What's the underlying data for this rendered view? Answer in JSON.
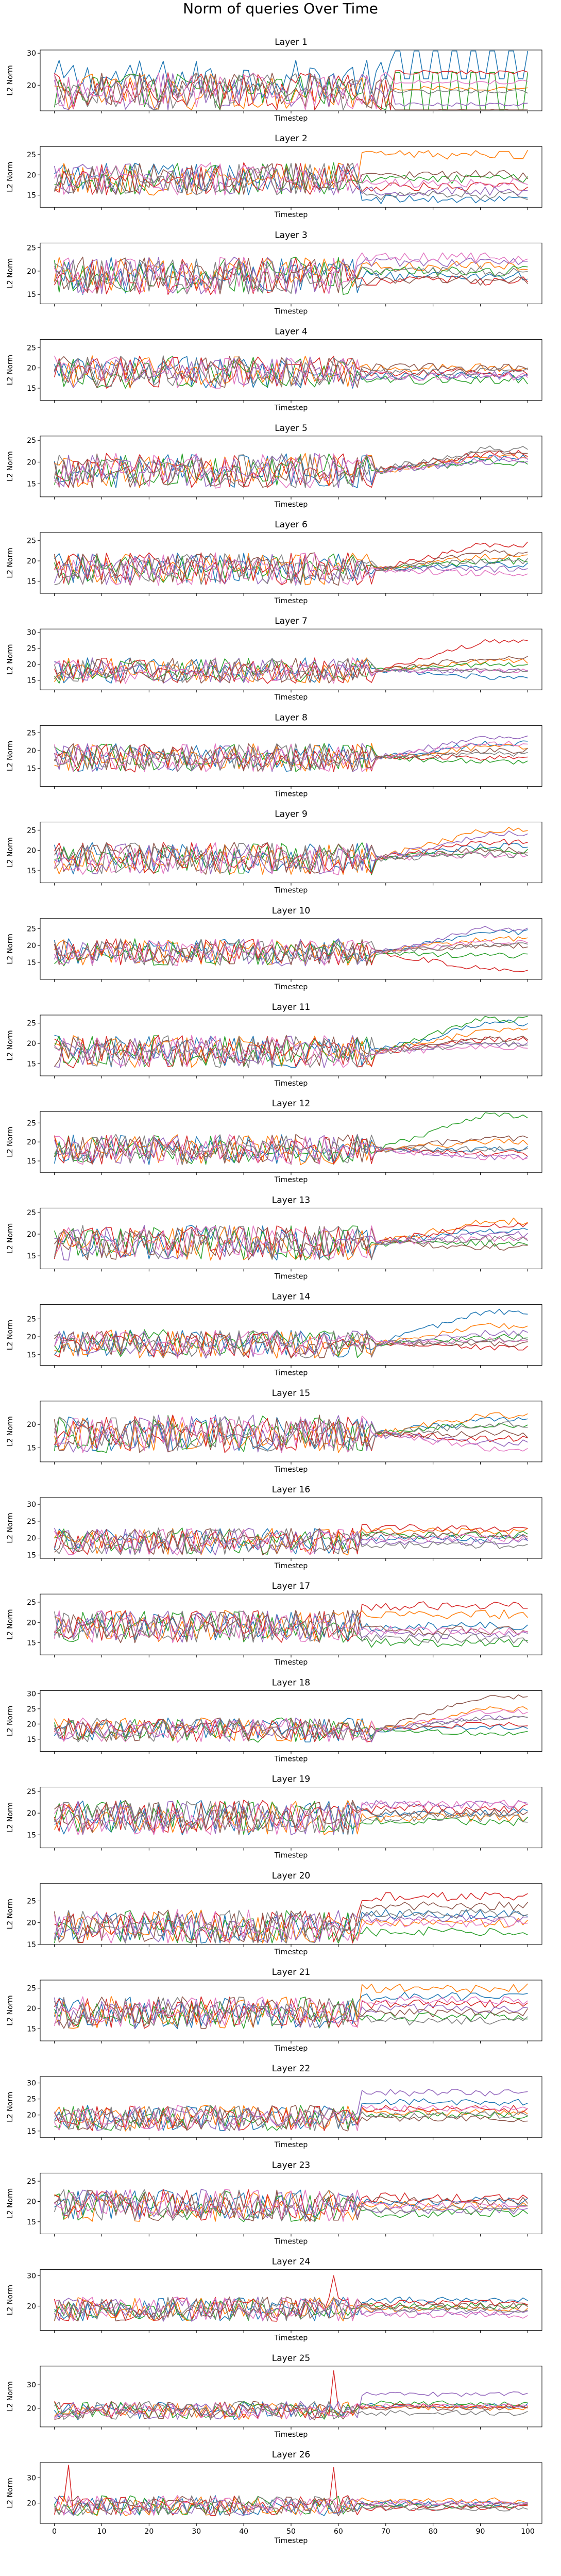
{
  "figure": {
    "suptitle": "Norm of queries Over Time",
    "xlabel": "Timestep",
    "ylabel": "L2 Norm",
    "x_ticks": [
      0,
      10,
      20,
      30,
      40,
      50,
      60,
      70,
      80,
      90,
      100
    ],
    "xlim": [
      -3,
      103
    ],
    "colors": [
      "#1f77b4",
      "#ff7f0e",
      "#2ca02c",
      "#d62728",
      "#9467bd",
      "#8c564b",
      "#e377c2",
      "#7f7f7f"
    ]
  },
  "chart_data": [
    {
      "type": "line",
      "title": "Layer 1",
      "xlabel": "Timestep",
      "ylabel": "L2 Norm",
      "ylim": [
        12,
        31
      ],
      "yticks": [
        20,
        30
      ],
      "profile": "early",
      "base": [
        26,
        19,
        16,
        24,
        14,
        12,
        21,
        18
      ],
      "series": []
    },
    {
      "type": "line",
      "title": "Layer 2",
      "xlabel": "Timestep",
      "ylabel": "L2 Norm",
      "ylim": [
        12,
        27
      ],
      "yticks": [
        15,
        20,
        25
      ],
      "profile": "flat",
      "base": [
        14,
        25,
        19,
        17,
        16,
        20,
        18,
        15
      ],
      "series": []
    },
    {
      "type": "line",
      "title": "Layer 3",
      "xlabel": "Timestep",
      "ylabel": "L2 Norm",
      "ylim": [
        13,
        26
      ],
      "yticks": [
        15,
        20,
        25
      ],
      "profile": "flat",
      "base": [
        19,
        21,
        20,
        18,
        22,
        18,
        23,
        20
      ],
      "series": []
    },
    {
      "type": "line",
      "title": "Layer 4",
      "xlabel": "Timestep",
      "ylabel": "L2 Norm",
      "ylim": [
        12,
        27
      ],
      "yticks": [
        15,
        20,
        25
      ],
      "profile": "flat",
      "base": [
        18,
        20,
        17,
        19,
        18,
        20,
        18,
        19
      ],
      "series": []
    },
    {
      "type": "line",
      "title": "Layer 5",
      "xlabel": "Timestep",
      "ylabel": "L2 Norm",
      "ylim": [
        12,
        26
      ],
      "yticks": [
        15,
        20,
        25
      ],
      "profile": "rise",
      "base": [
        21,
        21,
        20,
        22,
        20,
        22,
        21,
        23
      ],
      "series": []
    },
    {
      "type": "line",
      "title": "Layer 6",
      "xlabel": "Timestep",
      "ylabel": "L2 Norm",
      "ylim": [
        12,
        27
      ],
      "yticks": [
        15,
        20,
        25
      ],
      "profile": "rise",
      "base": [
        19,
        21,
        20,
        24,
        18,
        22,
        17,
        20
      ],
      "series": []
    },
    {
      "type": "line",
      "title": "Layer 7",
      "xlabel": "Timestep",
      "ylabel": "L2 Norm",
      "ylim": [
        12,
        31
      ],
      "yticks": [
        15,
        20,
        25,
        30
      ],
      "profile": "rise",
      "base": [
        16,
        21,
        20,
        27,
        18,
        22,
        18,
        18
      ],
      "series": []
    },
    {
      "type": "line",
      "title": "Layer 8",
      "xlabel": "Timestep",
      "ylabel": "L2 Norm",
      "ylim": [
        10,
        27
      ],
      "yticks": [
        15,
        20,
        25
      ],
      "profile": "rise",
      "base": [
        22,
        21,
        17,
        18,
        24,
        20,
        22,
        19
      ],
      "series": []
    },
    {
      "type": "line",
      "title": "Layer 9",
      "xlabel": "Timestep",
      "ylabel": "L2 Norm",
      "ylim": [
        12,
        27
      ],
      "yticks": [
        15,
        20,
        25
      ],
      "profile": "rise",
      "base": [
        21,
        25,
        20,
        22,
        24,
        20,
        19,
        19
      ],
      "series": []
    },
    {
      "type": "line",
      "title": "Layer 10",
      "xlabel": "Timestep",
      "ylabel": "L2 Norm",
      "ylim": [
        10,
        28
      ],
      "yticks": [
        15,
        20,
        25
      ],
      "profile": "rise",
      "base": [
        24,
        22,
        17,
        13,
        25,
        20,
        21,
        20
      ],
      "series": []
    },
    {
      "type": "line",
      "title": "Layer 11",
      "xlabel": "Timestep",
      "ylabel": "L2 Norm",
      "ylim": [
        12,
        27
      ],
      "yticks": [
        15,
        20,
        25
      ],
      "profile": "rise",
      "base": [
        25,
        23,
        26,
        21,
        20,
        21,
        19,
        20
      ],
      "series": []
    },
    {
      "type": "line",
      "title": "Layer 12",
      "xlabel": "Timestep",
      "ylabel": "L2 Norm",
      "ylim": [
        12,
        28
      ],
      "yticks": [
        15,
        20,
        25
      ],
      "profile": "rise",
      "base": [
        18,
        20,
        27,
        17,
        16,
        21,
        16,
        18
      ],
      "series": []
    },
    {
      "type": "line",
      "title": "Layer 13",
      "xlabel": "Timestep",
      "ylabel": "L2 Norm",
      "ylim": [
        12,
        26
      ],
      "yticks": [
        15,
        20,
        25
      ],
      "profile": "rise",
      "base": [
        21,
        23,
        18,
        22,
        20,
        17,
        19,
        19
      ],
      "series": []
    },
    {
      "type": "line",
      "title": "Layer 14",
      "xlabel": "Timestep",
      "ylabel": "L2 Norm",
      "ylim": [
        12,
        29
      ],
      "yticks": [
        15,
        20,
        25
      ],
      "profile": "rise",
      "base": [
        27,
        23,
        20,
        17,
        21,
        18,
        19,
        19
      ],
      "series": []
    },
    {
      "type": "line",
      "title": "Layer 15",
      "xlabel": "Timestep",
      "ylabel": "L2 Norm",
      "ylim": [
        12,
        25
      ],
      "yticks": [
        15,
        20
      ],
      "profile": "rise",
      "base": [
        21,
        22,
        20,
        17,
        16,
        18,
        15,
        20
      ],
      "series": []
    },
    {
      "type": "line",
      "title": "Layer 16",
      "xlabel": "Timestep",
      "ylabel": "L2 Norm",
      "ylim": [
        14,
        32
      ],
      "yticks": [
        15,
        20,
        25,
        30
      ],
      "profile": "flat",
      "base": [
        20,
        22,
        21,
        23,
        19,
        21,
        20,
        18
      ],
      "series": []
    },
    {
      "type": "line",
      "title": "Layer 17",
      "xlabel": "Timestep",
      "ylabel": "L2 Norm",
      "ylim": [
        12,
        27
      ],
      "yticks": [
        15,
        20,
        25
      ],
      "profile": "flat",
      "base": [
        19,
        22,
        15,
        24,
        17,
        18,
        18,
        16
      ],
      "series": []
    },
    {
      "type": "line",
      "title": "Layer 18",
      "xlabel": "Timestep",
      "ylabel": "L2 Norm",
      "ylim": [
        11,
        31
      ],
      "yticks": [
        15,
        20,
        25,
        30
      ],
      "profile": "rise",
      "base": [
        19,
        25,
        17,
        20,
        22,
        29,
        24,
        22
      ],
      "series": []
    },
    {
      "type": "line",
      "title": "Layer 19",
      "xlabel": "Timestep",
      "ylabel": "L2 Norm",
      "ylim": [
        12,
        26
      ],
      "yticks": [
        15,
        20,
        25
      ],
      "profile": "flat",
      "base": [
        20,
        19,
        18,
        21,
        22,
        20,
        22,
        19
      ],
      "series": []
    },
    {
      "type": "line",
      "title": "Layer 20",
      "xlabel": "Timestep",
      "ylabel": "L2 Norm",
      "ylim": [
        15,
        29
      ],
      "yticks": [
        15,
        20,
        25
      ],
      "profile": "flat",
      "base": [
        22,
        20,
        18,
        26,
        21,
        24,
        20,
        22
      ],
      "series": []
    },
    {
      "type": "line",
      "title": "Layer 21",
      "xlabel": "Timestep",
      "ylabel": "L2 Norm",
      "ylim": [
        12,
        27
      ],
      "yticks": [
        15,
        20,
        25
      ],
      "profile": "flat",
      "base": [
        23,
        25,
        18,
        21,
        20,
        19,
        22,
        17
      ],
      "series": []
    },
    {
      "type": "line",
      "title": "Layer 22",
      "xlabel": "Timestep",
      "ylabel": "L2 Norm",
      "ylim": [
        13,
        32
      ],
      "yticks": [
        15,
        20,
        25,
        30
      ],
      "profile": "flat",
      "base": [
        24,
        21,
        20,
        22,
        27,
        19,
        22,
        20
      ],
      "series": []
    },
    {
      "type": "line",
      "title": "Layer 23",
      "xlabel": "Timestep",
      "ylabel": "L2 Norm",
      "ylim": [
        12,
        27
      ],
      "yticks": [
        15,
        20,
        25
      ],
      "profile": "flat",
      "base": [
        20,
        19,
        17,
        21,
        18,
        20,
        19,
        18
      ],
      "series": []
    },
    {
      "type": "line",
      "title": "Layer 24",
      "xlabel": "Timestep",
      "ylabel": "L2 Norm",
      "ylim": [
        12,
        32
      ],
      "yticks": [
        20,
        30
      ],
      "profile": "flat",
      "base": [
        22,
        19,
        20,
        21,
        18,
        20,
        17,
        19
      ],
      "series": []
    },
    {
      "type": "line",
      "title": "Layer 25",
      "xlabel": "Timestep",
      "ylabel": "L2 Norm",
      "ylim": [
        12,
        38
      ],
      "yticks": [
        20,
        30
      ],
      "profile": "flat",
      "base": [
        21,
        20,
        22,
        21,
        26,
        20,
        21,
        18
      ],
      "series": []
    },
    {
      "type": "line",
      "title": "Layer 26",
      "xlabel": "Timestep",
      "ylabel": "L2 Norm",
      "ylim": [
        12,
        36
      ],
      "yticks": [
        20,
        30
      ],
      "profile": "flat",
      "base": [
        20,
        21,
        19,
        18,
        20,
        19,
        20,
        18
      ],
      "series": []
    }
  ]
}
